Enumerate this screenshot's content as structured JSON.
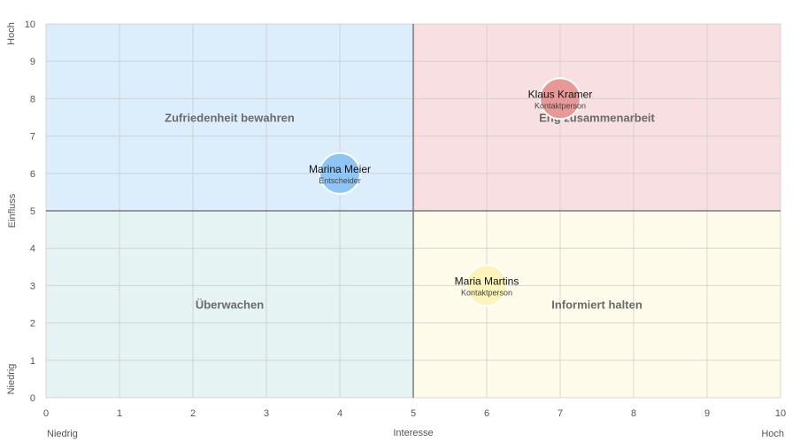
{
  "chart_data": {
    "type": "scatter",
    "title": "",
    "xlabel": "Interesse",
    "ylabel": "Einfluss",
    "x_low_label": "Niedrig",
    "x_high_label": "Hoch",
    "y_low_label": "Niedrig",
    "y_high_label": "Hoch",
    "xlim": [
      0,
      10
    ],
    "ylim": [
      0,
      10
    ],
    "x_ticks": [
      "0",
      "1",
      "2",
      "3",
      "4",
      "5",
      "6",
      "7",
      "8",
      "9",
      "10"
    ],
    "y_ticks": [
      "0",
      "1",
      "2",
      "3",
      "4",
      "5",
      "6",
      "7",
      "8",
      "9",
      "10"
    ],
    "grid": true,
    "divider": {
      "x": 5,
      "y": 5
    },
    "quadrants": [
      {
        "label": "Zufriedenheit bewahren",
        "x_range": [
          0,
          5
        ],
        "y_range": [
          5,
          10
        ],
        "color": "#dcedfc",
        "label_x": 2.5,
        "label_y": 7.5
      },
      {
        "label": "Eng zusammenarbeit",
        "x_range": [
          5,
          10
        ],
        "y_range": [
          5,
          10
        ],
        "color": "#f8dfe2",
        "label_x": 7.5,
        "label_y": 7.5
      },
      {
        "label": "Überwachen",
        "x_range": [
          0,
          5
        ],
        "y_range": [
          0,
          5
        ],
        "color": "#e5f3f2",
        "label_x": 2.5,
        "label_y": 2.5
      },
      {
        "label": "Informiert halten",
        "x_range": [
          5,
          10
        ],
        "y_range": [
          0,
          5
        ],
        "color": "#fefbeb",
        "label_x": 7.5,
        "label_y": 2.5
      }
    ],
    "points": [
      {
        "name": "Klaus Kramer",
        "role": "Kontaktperson",
        "x": 7,
        "y": 8,
        "color": "#e89896"
      },
      {
        "name": "Marina Meier",
        "role": "Entscheider",
        "x": 4,
        "y": 6,
        "color": "#8fc5f4"
      },
      {
        "name": "Maria Martins",
        "role": "Kontaktperson",
        "x": 6,
        "y": 3,
        "color": "#fcf4b9"
      }
    ]
  }
}
